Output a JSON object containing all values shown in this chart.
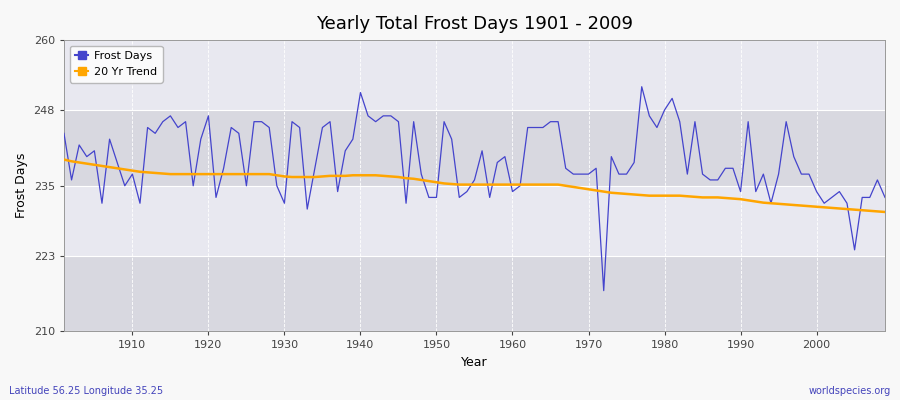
{
  "title": "Yearly Total Frost Days 1901 - 2009",
  "ylabel": "Frost Days",
  "xlabel": "Year",
  "bottom_left": "Latitude 56.25 Longitude 35.25",
  "bottom_right": "worldspecies.org",
  "line_color": "#4444cc",
  "trend_color": "#FFA500",
  "background_color": "#f0f0f0",
  "plot_bg_color": "#e0e0e8",
  "ylim": [
    210,
    260
  ],
  "yticks": [
    210,
    223,
    235,
    248,
    260
  ],
  "years": [
    1901,
    1902,
    1903,
    1904,
    1905,
    1906,
    1907,
    1908,
    1909,
    1910,
    1911,
    1912,
    1913,
    1914,
    1915,
    1916,
    1917,
    1918,
    1919,
    1920,
    1921,
    1922,
    1923,
    1924,
    1925,
    1926,
    1927,
    1928,
    1929,
    1930,
    1931,
    1932,
    1933,
    1934,
    1935,
    1936,
    1937,
    1938,
    1939,
    1940,
    1941,
    1942,
    1943,
    1944,
    1945,
    1946,
    1947,
    1948,
    1949,
    1950,
    1951,
    1952,
    1953,
    1954,
    1955,
    1956,
    1957,
    1958,
    1959,
    1960,
    1961,
    1962,
    1963,
    1964,
    1965,
    1966,
    1967,
    1968,
    1969,
    1970,
    1971,
    1972,
    1973,
    1974,
    1975,
    1976,
    1977,
    1978,
    1979,
    1980,
    1981,
    1982,
    1983,
    1984,
    1985,
    1986,
    1987,
    1988,
    1989,
    1990,
    1991,
    1992,
    1993,
    1994,
    1995,
    1996,
    1997,
    1998,
    1999,
    2000,
    2001,
    2002,
    2003,
    2004,
    2005,
    2006,
    2007,
    2008,
    2009
  ],
  "frost_days": [
    244,
    236,
    242,
    240,
    241,
    232,
    243,
    239,
    235,
    237,
    232,
    245,
    244,
    246,
    247,
    245,
    246,
    235,
    243,
    247,
    233,
    238,
    245,
    244,
    235,
    246,
    246,
    245,
    235,
    232,
    246,
    245,
    231,
    238,
    245,
    246,
    234,
    241,
    243,
    251,
    247,
    246,
    247,
    247,
    246,
    232,
    246,
    237,
    233,
    233,
    246,
    243,
    233,
    234,
    236,
    241,
    233,
    239,
    240,
    234,
    235,
    245,
    245,
    245,
    246,
    246,
    238,
    237,
    237,
    237,
    238,
    217,
    240,
    237,
    237,
    239,
    252,
    247,
    245,
    248,
    250,
    246,
    237,
    246,
    237,
    236,
    236,
    238,
    238,
    234,
    246,
    234,
    237,
    232,
    237,
    246,
    240,
    237,
    237,
    234,
    232,
    233,
    234,
    232,
    224,
    233,
    233,
    236,
    233
  ],
  "trend_values": [
    239.5,
    239.2,
    239.0,
    238.8,
    238.6,
    238.4,
    238.2,
    238.0,
    237.8,
    237.6,
    237.4,
    237.3,
    237.2,
    237.1,
    237.0,
    237.0,
    237.0,
    237.0,
    237.0,
    237.0,
    237.0,
    237.0,
    237.0,
    237.0,
    237.0,
    237.0,
    237.0,
    237.0,
    236.8,
    236.6,
    236.5,
    236.5,
    236.5,
    236.5,
    236.6,
    236.7,
    236.7,
    236.7,
    236.8,
    236.8,
    236.8,
    236.8,
    236.7,
    236.6,
    236.5,
    236.3,
    236.2,
    236.0,
    235.8,
    235.6,
    235.4,
    235.3,
    235.2,
    235.2,
    235.2,
    235.2,
    235.2,
    235.2,
    235.2,
    235.2,
    235.2,
    235.2,
    235.2,
    235.2,
    235.2,
    235.2,
    235.0,
    234.8,
    234.6,
    234.4,
    234.2,
    234.0,
    233.8,
    233.7,
    233.6,
    233.5,
    233.4,
    233.3,
    233.3,
    233.3,
    233.3,
    233.3,
    233.2,
    233.1,
    233.0,
    233.0,
    233.0,
    232.9,
    232.8,
    232.7,
    232.5,
    232.3,
    232.1,
    232.0,
    231.9,
    231.8,
    231.7,
    231.6,
    231.5,
    231.4,
    231.3,
    231.2,
    231.1,
    231.0,
    230.9,
    230.8,
    230.7,
    230.6,
    230.5
  ]
}
